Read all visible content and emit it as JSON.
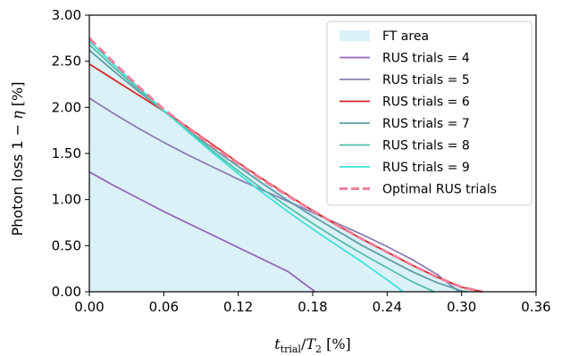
{
  "chart_data": {
    "type": "line",
    "title": "",
    "xlabel": "t_trial/T_2 [%]",
    "ylabel": "Photon loss 1 − η [%]",
    "xlim": [
      0.0,
      0.36
    ],
    "ylim": [
      0.0,
      3.0
    ],
    "xticks": [
      "0.00",
      "0.06",
      "0.12",
      "0.18",
      "0.24",
      "0.30",
      "0.36"
    ],
    "yticks": [
      "0.00",
      "0.50",
      "1.00",
      "1.50",
      "2.00",
      "2.50",
      "3.00"
    ],
    "grid": false,
    "legend_position": "top-right",
    "area": {
      "name": "FT area",
      "color": "#dbf1f8",
      "x": [
        0.0,
        0.02,
        0.04,
        0.06,
        0.08,
        0.1,
        0.12,
        0.14,
        0.16,
        0.18,
        0.2,
        0.22,
        0.24,
        0.26,
        0.28,
        0.3,
        0.317
      ],
      "y": [
        2.75,
        2.48,
        2.22,
        1.98,
        1.76,
        1.56,
        1.37,
        1.19,
        1.03,
        0.87,
        0.72,
        0.57,
        0.43,
        0.29,
        0.16,
        0.05,
        0.0
      ]
    },
    "series": [
      {
        "name": "RUS trials = 4",
        "color": "#9467bd",
        "dashed": false,
        "x": [
          0.0,
          0.02,
          0.04,
          0.06,
          0.08,
          0.1,
          0.12,
          0.14,
          0.16,
          0.182
        ],
        "y": [
          1.3,
          1.15,
          1.01,
          0.87,
          0.74,
          0.61,
          0.48,
          0.35,
          0.22,
          0.0
        ]
      },
      {
        "name": "RUS trials = 5",
        "color": "#8c7db5",
        "dashed": false,
        "x": [
          0.0,
          0.02,
          0.04,
          0.06,
          0.08,
          0.1,
          0.12,
          0.14,
          0.16,
          0.18,
          0.2,
          0.22,
          0.24,
          0.26,
          0.28,
          0.298
        ],
        "y": [
          2.1,
          1.93,
          1.77,
          1.62,
          1.48,
          1.35,
          1.22,
          1.1,
          0.98,
          0.86,
          0.74,
          0.62,
          0.49,
          0.35,
          0.19,
          0.0
        ]
      },
      {
        "name": "RUS trials = 6",
        "color": "#d62728",
        "dashed": false,
        "x": [
          0.0,
          0.02,
          0.04,
          0.06,
          0.08,
          0.1,
          0.12,
          0.14,
          0.16,
          0.18,
          0.2,
          0.22,
          0.24,
          0.26,
          0.28,
          0.3,
          0.317
        ],
        "y": [
          2.47,
          2.3,
          2.13,
          1.96,
          1.78,
          1.59,
          1.4,
          1.22,
          1.05,
          0.88,
          0.72,
          0.57,
          0.43,
          0.29,
          0.16,
          0.05,
          0.0
        ]
      },
      {
        "name": "RUS trials = 7",
        "color": "#5f9ea6",
        "dashed": false,
        "x": [
          0.0,
          0.02,
          0.04,
          0.06,
          0.08,
          0.1,
          0.12,
          0.14,
          0.16,
          0.18,
          0.2,
          0.22,
          0.24,
          0.26,
          0.28,
          0.3,
          0.305
        ],
        "y": [
          2.62,
          2.39,
          2.17,
          1.96,
          1.75,
          1.55,
          1.36,
          1.17,
          0.99,
          0.82,
          0.66,
          0.5,
          0.36,
          0.22,
          0.1,
          0.01,
          0.0
        ]
      },
      {
        "name": "RUS trials = 8",
        "color": "#52bfa6",
        "dashed": false,
        "x": [
          0.0,
          0.02,
          0.04,
          0.06,
          0.08,
          0.1,
          0.12,
          0.14,
          0.16,
          0.18,
          0.2,
          0.22,
          0.24,
          0.26,
          0.278
        ],
        "y": [
          2.68,
          2.43,
          2.19,
          1.96,
          1.74,
          1.52,
          1.31,
          1.11,
          0.92,
          0.74,
          0.57,
          0.41,
          0.26,
          0.11,
          0.0
        ]
      },
      {
        "name": "RUS trials = 9",
        "color": "#40e0d8",
        "dashed": false,
        "x": [
          0.0,
          0.02,
          0.04,
          0.06,
          0.08,
          0.1,
          0.12,
          0.14,
          0.16,
          0.18,
          0.2,
          0.22,
          0.24,
          0.253
        ],
        "y": [
          2.72,
          2.46,
          2.21,
          1.97,
          1.73,
          1.5,
          1.28,
          1.07,
          0.87,
          0.68,
          0.5,
          0.32,
          0.13,
          0.0
        ]
      },
      {
        "name": "Optimal RUS trials",
        "color": "#f08098",
        "dashed": true,
        "x": [
          0.0,
          0.02,
          0.04,
          0.06,
          0.08,
          0.1,
          0.12,
          0.14,
          0.16,
          0.18,
          0.2,
          0.22,
          0.24,
          0.26,
          0.28,
          0.3,
          0.317
        ],
        "y": [
          2.75,
          2.48,
          2.22,
          1.98,
          1.77,
          1.57,
          1.39,
          1.21,
          1.04,
          0.88,
          0.72,
          0.57,
          0.43,
          0.29,
          0.16,
          0.05,
          0.0
        ]
      }
    ]
  }
}
